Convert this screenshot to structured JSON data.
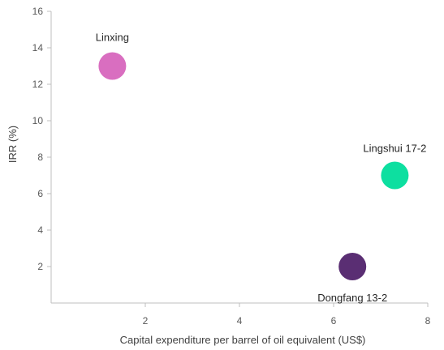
{
  "chart_data": {
    "type": "scatter",
    "title": "",
    "xlabel": "Capital expenditure per barrel of oil equivalent (US$)",
    "ylabel": "IRR (%)",
    "xlim": [
      0,
      8
    ],
    "ylim": [
      0,
      16
    ],
    "xticks": [
      "2",
      "4",
      "6",
      "8"
    ],
    "yticks": [
      "2",
      "4",
      "6",
      "8",
      "10",
      "12",
      "14",
      "16"
    ],
    "grid": false,
    "legend": "none",
    "points": [
      {
        "label": "Linxing",
        "x": 1.3,
        "y": 13,
        "color": "#d96ec0"
      },
      {
        "label": "Lingshui 17-2",
        "x": 7.3,
        "y": 7,
        "color": "#0ddfa0"
      },
      {
        "label": "Dongfang 13-2",
        "x": 6.4,
        "y": 2,
        "color": "#5a2e73"
      }
    ]
  }
}
